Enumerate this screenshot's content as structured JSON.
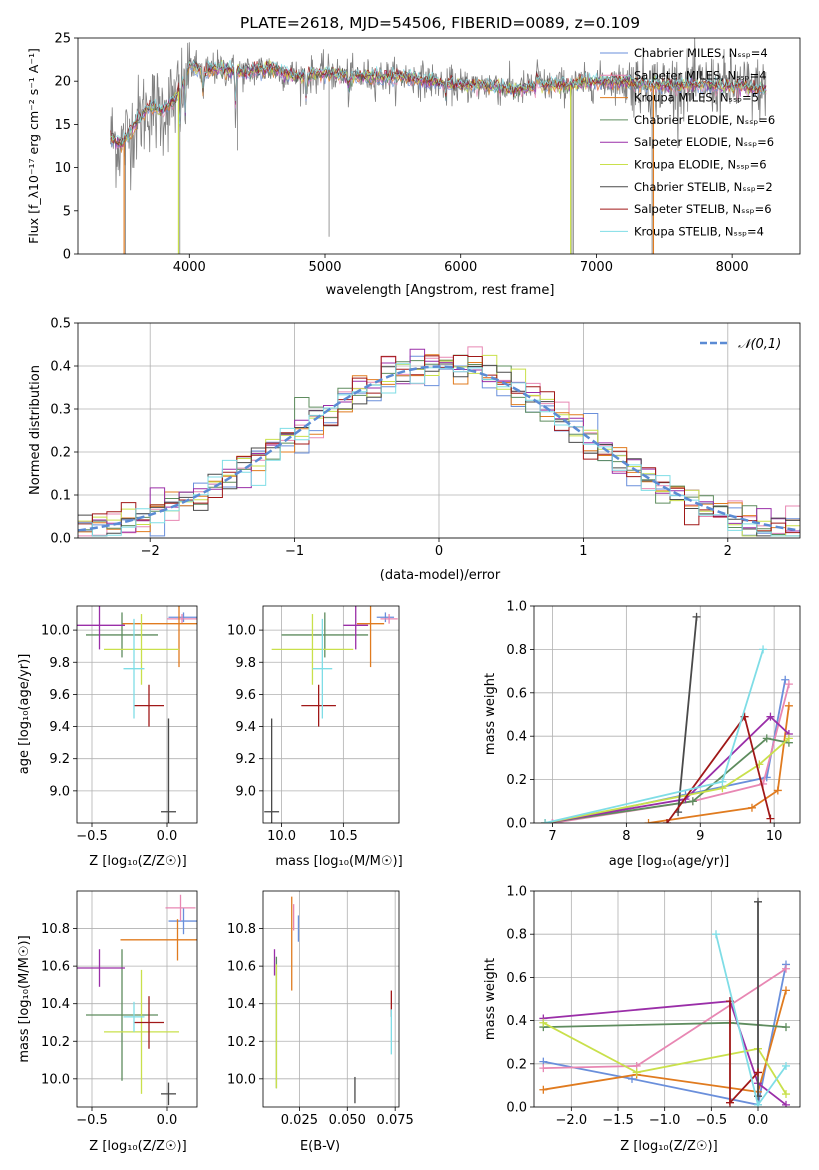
{
  "chart_data": [
    {
      "id": "spectrum",
      "type": "line",
      "title": "PLATE=2618, MJD=54506, FIBERID=0089, z=0.109",
      "xlabel": "wavelength [Angstrom, rest frame]",
      "ylabel": "Flux [f_λ10⁻¹⁷ erg cm⁻² s⁻¹ A⁻¹]",
      "xlim": [
        3180,
        8500
      ],
      "ylim": [
        0,
        25
      ],
      "xticks": [
        4000,
        5000,
        6000,
        7000,
        8000
      ],
      "yticks": [
        0,
        5,
        10,
        15,
        20,
        25
      ],
      "legend_position": "right",
      "series": [
        {
          "name": "Chabrier MILES, N_SSP=4",
          "color": "#6a8fdb"
        },
        {
          "name": "Salpeter MILES, N_SSP=4",
          "color": "#e887b3"
        },
        {
          "name": "Kroupa MILES, N_SSP=5",
          "color": "#e07b1f"
        },
        {
          "name": "Chabrier ELODIE, N_SSP=6",
          "color": "#5e8c5e"
        },
        {
          "name": "Salpeter ELODIE, N_SSP=6",
          "color": "#9a2ea8"
        },
        {
          "name": "Kroupa ELODIE, N_SSP=6",
          "color": "#c9e04b"
        },
        {
          "name": "Chabrier STELIB, N_SSP=2",
          "color": "#4a4a4a"
        },
        {
          "name": "Salpeter STELIB, N_SSP=6",
          "color": "#a01818"
        },
        {
          "name": "Kroupa STELIB, N_SSP=4",
          "color": "#7fdde6"
        }
      ],
      "observed_color": "#808080",
      "continuum": [
        [
          3420,
          13.5
        ],
        [
          3500,
          12.5
        ],
        [
          3600,
          15
        ],
        [
          3700,
          17
        ],
        [
          3800,
          16.5
        ],
        [
          3900,
          18
        ],
        [
          4000,
          22
        ],
        [
          4100,
          21
        ],
        [
          4200,
          21.5
        ],
        [
          4400,
          21
        ],
        [
          4600,
          21.5
        ],
        [
          4800,
          20.5
        ],
        [
          5000,
          21
        ],
        [
          5200,
          20.5
        ],
        [
          5400,
          20.5
        ],
        [
          5600,
          20.5
        ],
        [
          5800,
          20
        ],
        [
          6000,
          19.5
        ],
        [
          6200,
          19.5
        ],
        [
          6400,
          19
        ],
        [
          6600,
          19.5
        ],
        [
          6800,
          19.5
        ],
        [
          7000,
          20
        ],
        [
          7200,
          20
        ],
        [
          7400,
          19.5
        ],
        [
          7600,
          19.5
        ],
        [
          7800,
          19.5
        ],
        [
          8000,
          19.5
        ],
        [
          8250,
          19
        ]
      ]
    },
    {
      "id": "residuals",
      "type": "histogram",
      "xlabel": "(data-model)/error",
      "ylabel": "Normed distribution",
      "xlim": [
        -2.5,
        2.5
      ],
      "ylim": [
        0,
        0.5
      ],
      "xticks": [
        -2,
        -1,
        0,
        1,
        2
      ],
      "yticks": [
        0.0,
        0.1,
        0.2,
        0.3,
        0.4,
        0.5
      ],
      "legend": "𝒩(0,1)",
      "gaussian_color": "#5b8bd4"
    },
    {
      "id": "age_vs_Z",
      "type": "scatter",
      "xlabel": "Z [log₁₀(Z/Z☉)]",
      "ylabel": "age  [log₁₀(age/yr)]",
      "xlim": [
        -0.6,
        0.2
      ],
      "ylim": [
        8.8,
        10.15
      ],
      "xticks": [
        -0.5,
        0.0
      ],
      "yticks": [
        9.0,
        9.2,
        9.4,
        9.6,
        9.8,
        10.0
      ],
      "points": [
        {
          "x": 0.11,
          "y": 10.08,
          "xerr": 0.1,
          "yerr": 0.03,
          "color": "#6a8fdb"
        },
        {
          "x": 0.1,
          "y": 10.07,
          "xerr": 0.1,
          "yerr": 0.03,
          "color": "#e887b3"
        },
        {
          "x": 0.08,
          "y": 10.04,
          "xerr": 0.38,
          "yerr": 0.27,
          "color": "#e07b1f"
        },
        {
          "x": -0.3,
          "y": 9.97,
          "xerr": 0.24,
          "yerr": 0.14,
          "color": "#5e8c5e"
        },
        {
          "x": -0.45,
          "y": 10.03,
          "xerr": 0.17,
          "yerr": 0.15,
          "color": "#9a2ea8"
        },
        {
          "x": -0.17,
          "y": 9.88,
          "xerr": 0.25,
          "yerr": 0.22,
          "color": "#c9e04b"
        },
        {
          "x": 0.01,
          "y": 8.87,
          "xerr": 0.05,
          "yerr": 0.58,
          "color": "#4a4a4a"
        },
        {
          "x": -0.12,
          "y": 9.53,
          "xerr": 0.1,
          "yerr": 0.13,
          "color": "#a01818"
        },
        {
          "x": -0.22,
          "y": 9.76,
          "xerr": 0.07,
          "yerr": 0.31,
          "color": "#7fdde6"
        }
      ]
    },
    {
      "id": "age_vs_mass",
      "type": "scatter",
      "xlabel": "mass [log₁₀(M/M☉)]",
      "ylabel": "",
      "xlim": [
        9.85,
        10.95
      ],
      "ylim": [
        8.8,
        10.15
      ],
      "xticks": [
        10.0,
        10.5
      ],
      "yticks": [
        9.0,
        9.2,
        9.4,
        9.6,
        9.8,
        10.0
      ],
      "points": [
        {
          "x": 10.84,
          "y": 10.08,
          "xerr": 0.07,
          "yerr": 0.03,
          "color": "#6a8fdb"
        },
        {
          "x": 10.87,
          "y": 10.07,
          "xerr": 0.07,
          "yerr": 0.03,
          "color": "#e887b3"
        },
        {
          "x": 10.72,
          "y": 10.04,
          "xerr": 0.11,
          "yerr": 0.27,
          "color": "#e07b1f"
        },
        {
          "x": 10.35,
          "y": 9.97,
          "xerr": 0.35,
          "yerr": 0.14,
          "color": "#5e8c5e"
        },
        {
          "x": 10.6,
          "y": 10.03,
          "xerr": 0.1,
          "yerr": 0.15,
          "color": "#9a2ea8"
        },
        {
          "x": 10.25,
          "y": 9.88,
          "xerr": 0.33,
          "yerr": 0.22,
          "color": "#c9e04b"
        },
        {
          "x": 9.92,
          "y": 8.87,
          "xerr": 0.06,
          "yerr": 0.58,
          "color": "#4a4a4a"
        },
        {
          "x": 10.3,
          "y": 9.53,
          "xerr": 0.14,
          "yerr": 0.13,
          "color": "#a01818"
        },
        {
          "x": 10.33,
          "y": 9.76,
          "xerr": 0.08,
          "yerr": 0.31,
          "color": "#7fdde6"
        }
      ]
    },
    {
      "id": "massweight_vs_age",
      "type": "line",
      "xlabel": "age  [log₁₀(age/yr)]",
      "ylabel": "mass weight",
      "xlim": [
        6.75,
        10.35
      ],
      "ylim": [
        0,
        1
      ],
      "xticks": [
        7,
        8,
        9,
        10
      ],
      "yticks": [
        0.0,
        0.2,
        0.4,
        0.6,
        0.8,
        1.0
      ],
      "series": [
        {
          "color": "#6a8fdb",
          "points": [
            [
              7.0,
              0.0
            ],
            [
              8.8,
              0.13
            ],
            [
              9.9,
              0.21
            ],
            [
              10.15,
              0.66
            ]
          ]
        },
        {
          "color": "#e887b3",
          "points": [
            [
              7.0,
              0.0
            ],
            [
              8.9,
              0.1
            ],
            [
              9.85,
              0.18
            ],
            [
              10.2,
              0.64
            ]
          ]
        },
        {
          "color": "#e07b1f",
          "points": [
            [
              8.3,
              0.0
            ],
            [
              9.7,
              0.07
            ],
            [
              10.05,
              0.15
            ],
            [
              10.2,
              0.54
            ]
          ]
        },
        {
          "color": "#5e8c5e",
          "points": [
            [
              6.9,
              0.0
            ],
            [
              8.9,
              0.1
            ],
            [
              9.9,
              0.39
            ],
            [
              10.2,
              0.37
            ]
          ]
        },
        {
          "color": "#9a2ea8",
          "points": [
            [
              6.9,
              0.0
            ],
            [
              8.8,
              0.11
            ],
            [
              9.95,
              0.49
            ],
            [
              10.2,
              0.41
            ]
          ]
        },
        {
          "color": "#c9e04b",
          "points": [
            [
              6.9,
              0.0
            ],
            [
              9.3,
              0.16
            ],
            [
              9.8,
              0.27
            ],
            [
              10.2,
              0.39
            ]
          ]
        },
        {
          "color": "#4a4a4a",
          "points": [
            [
              8.7,
              0.05
            ],
            [
              8.95,
              0.95
            ]
          ]
        },
        {
          "color": "#a01818",
          "points": [
            [
              8.55,
              0.0
            ],
            [
              9.6,
              0.49
            ],
            [
              9.95,
              0.02
            ]
          ]
        },
        {
          "color": "#7fdde6",
          "points": [
            [
              6.9,
              0.0
            ],
            [
              9.3,
              0.19
            ],
            [
              9.85,
              0.8
            ]
          ]
        }
      ]
    },
    {
      "id": "mass_vs_Z",
      "type": "scatter",
      "xlabel": "Z [log₁₀(Z/Z☉)]",
      "ylabel": "mass [log₁₀(M/M☉)]",
      "xlim": [
        -0.6,
        0.2
      ],
      "ylim": [
        9.85,
        11.0
      ],
      "xticks": [
        -0.5,
        0.0
      ],
      "yticks": [
        10.0,
        10.2,
        10.4,
        10.6,
        10.8
      ],
      "points": [
        {
          "x": 0.11,
          "y": 10.84,
          "xerr": 0.1,
          "yerr": 0.07,
          "color": "#6a8fdb"
        },
        {
          "x": 0.09,
          "y": 10.91,
          "xerr": 0.1,
          "yerr": 0.07,
          "color": "#e887b3"
        },
        {
          "x": 0.07,
          "y": 10.74,
          "xerr": 0.38,
          "yerr": 0.11,
          "color": "#e07b1f"
        },
        {
          "x": -0.3,
          "y": 10.34,
          "xerr": 0.24,
          "yerr": 0.35,
          "color": "#5e8c5e"
        },
        {
          "x": -0.45,
          "y": 10.59,
          "xerr": 0.17,
          "yerr": 0.1,
          "color": "#9a2ea8"
        },
        {
          "x": -0.17,
          "y": 10.25,
          "xerr": 0.25,
          "yerr": 0.33,
          "color": "#c9e04b"
        },
        {
          "x": 0.01,
          "y": 9.92,
          "xerr": 0.05,
          "yerr": 0.06,
          "color": "#4a4a4a"
        },
        {
          "x": -0.12,
          "y": 10.3,
          "xerr": 0.1,
          "yerr": 0.14,
          "color": "#a01818"
        },
        {
          "x": -0.22,
          "y": 10.33,
          "xerr": 0.07,
          "yerr": 0.08,
          "color": "#7fdde6"
        }
      ]
    },
    {
      "id": "mass_vs_ebv",
      "type": "scatter",
      "xlabel": "E(B-V)",
      "ylabel": "",
      "xlim": [
        0.006,
        0.077
      ],
      "ylim": [
        9.85,
        11.0
      ],
      "xticks": [
        0.025,
        0.05,
        0.075
      ],
      "yticks": [
        10.0,
        10.2,
        10.4,
        10.6,
        10.8
      ],
      "points": [
        {
          "x": 0.0245,
          "y": 10.8,
          "yerr": 0.07,
          "color": "#6a8fdb"
        },
        {
          "x": 0.022,
          "y": 10.86,
          "yerr": 0.07,
          "color": "#e887b3"
        },
        {
          "x": 0.021,
          "y": 10.72,
          "yerr": 0.25,
          "color": "#e07b1f"
        },
        {
          "x": 0.013,
          "y": 10.3,
          "yerr": 0.35,
          "color": "#5e8c5e"
        },
        {
          "x": 0.012,
          "y": 10.62,
          "yerr": 0.07,
          "color": "#9a2ea8"
        },
        {
          "x": 0.013,
          "y": 10.28,
          "yerr": 0.33,
          "color": "#c9e04b"
        },
        {
          "x": 0.054,
          "y": 9.94,
          "yerr": 0.07,
          "color": "#4a4a4a"
        },
        {
          "x": 0.073,
          "y": 10.4,
          "yerr": 0.07,
          "color": "#a01818"
        },
        {
          "x": 0.073,
          "y": 10.25,
          "yerr": 0.12,
          "color": "#7fdde6"
        }
      ]
    },
    {
      "id": "massweight_vs_Z",
      "type": "line",
      "xlabel": "Z [log₁₀(Z/Z☉)]",
      "ylabel": "mass weight",
      "xlim": [
        -2.4,
        0.45
      ],
      "ylim": [
        0,
        1
      ],
      "xticks": [
        -2.0,
        -1.5,
        -1.0,
        -0.5,
        0.0
      ],
      "yticks": [
        0.0,
        0.2,
        0.4,
        0.6,
        0.8,
        1.0
      ],
      "series": [
        {
          "color": "#6a8fdb",
          "points": [
            [
              -2.3,
              0.21
            ],
            [
              -1.35,
              0.13
            ],
            [
              0.0,
              0.01
            ],
            [
              0.3,
              0.66
            ]
          ]
        },
        {
          "color": "#e887b3",
          "points": [
            [
              -2.3,
              0.18
            ],
            [
              -1.3,
              0.19
            ],
            [
              0.3,
              0.64
            ]
          ]
        },
        {
          "color": "#e07b1f",
          "points": [
            [
              -2.3,
              0.08
            ],
            [
              -1.3,
              0.15
            ],
            [
              0.0,
              0.07
            ],
            [
              0.3,
              0.54
            ]
          ]
        },
        {
          "color": "#5e8c5e",
          "points": [
            [
              -2.3,
              0.37
            ],
            [
              -0.3,
              0.39
            ],
            [
              0.3,
              0.37
            ]
          ]
        },
        {
          "color": "#9a2ea8",
          "points": [
            [
              -2.3,
              0.41
            ],
            [
              -0.3,
              0.49
            ],
            [
              0.0,
              0.11
            ],
            [
              0.3,
              0.01
            ]
          ]
        },
        {
          "color": "#c9e04b",
          "points": [
            [
              -2.3,
              0.39
            ],
            [
              -1.3,
              0.16
            ],
            [
              0.0,
              0.27
            ],
            [
              0.3,
              0.06
            ]
          ]
        },
        {
          "color": "#4a4a4a",
          "points": [
            [
              0.0,
              0.95
            ],
            [
              0.0,
              0.05
            ]
          ]
        },
        {
          "color": "#a01818",
          "points": [
            [
              -0.3,
              0.49
            ],
            [
              -0.3,
              0.02
            ],
            [
              0.0,
              0.16
            ]
          ]
        },
        {
          "color": "#7fdde6",
          "points": [
            [
              -0.45,
              0.8
            ],
            [
              0.0,
              0.01
            ],
            [
              0.3,
              0.19
            ]
          ]
        }
      ]
    }
  ]
}
